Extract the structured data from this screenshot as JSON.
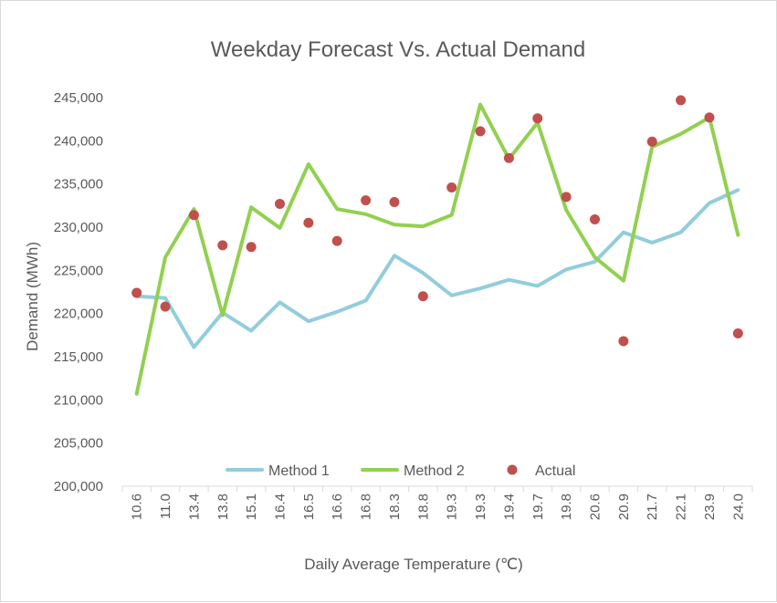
{
  "chart_data": {
    "type": "line",
    "title": "Weekday Forecast Vs. Actual Demand",
    "xlabel": "Daily Average Temperature (℃)",
    "ylabel": "Demand (MWh)",
    "categories": [
      "10.6",
      "11.0",
      "13.4",
      "13.8",
      "15.1",
      "16.4",
      "16.5",
      "16.6",
      "16.8",
      "18.3",
      "18.8",
      "19.3",
      "19.3",
      "19.4",
      "19.7",
      "19.8",
      "20.6",
      "20.9",
      "21.7",
      "22.1",
      "23.9",
      "24.0"
    ],
    "ylim": [
      200000,
      245000
    ],
    "yticks": [
      "200,000",
      "205,000",
      "210,000",
      "215,000",
      "220,000",
      "225,000",
      "230,000",
      "235,000",
      "240,000",
      "245,000"
    ],
    "legend_position": "bottom",
    "grid": false,
    "series": [
      {
        "name": "Method 1",
        "kind": "line",
        "color": "#92cddc",
        "values": [
          222000,
          221800,
          216100,
          220100,
          218000,
          221300,
          219100,
          220200,
          221500,
          226700,
          224700,
          222100,
          222900,
          223900,
          223200,
          225100,
          226000,
          229400,
          228200,
          229400,
          232800,
          234300
        ]
      },
      {
        "name": "Method 2",
        "kind": "line",
        "color": "#92d050",
        "values": [
          210700,
          226500,
          232100,
          219800,
          232300,
          229900,
          237300,
          232100,
          231500,
          230300,
          230100,
          231400,
          244200,
          237900,
          242100,
          232000,
          226500,
          223800,
          239300,
          240800,
          242700,
          229100
        ]
      },
      {
        "name": "Actual",
        "kind": "scatter",
        "color": "#c0504d",
        "values": [
          222400,
          220800,
          231400,
          227900,
          227700,
          232700,
          230500,
          228400,
          233100,
          232900,
          222000,
          234600,
          241100,
          238000,
          242600,
          233500,
          230900,
          216800,
          239900,
          244700,
          242700,
          217700
        ]
      }
    ]
  }
}
